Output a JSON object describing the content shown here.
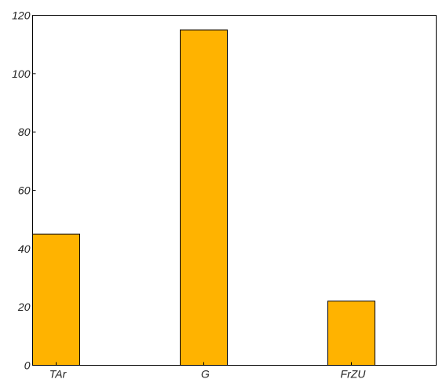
{
  "chart_data": {
    "type": "bar",
    "categories": [
      "TAr",
      "G",
      "FrZU"
    ],
    "values": [
      45,
      115,
      22
    ],
    "title": "",
    "xlabel": "",
    "ylabel": "",
    "ylim": [
      0,
      120
    ],
    "yticks": [
      0,
      20,
      40,
      60,
      80,
      100,
      120
    ],
    "bar_color": "#FFB300",
    "edge_color": "#000000",
    "grid": false,
    "legend": "none"
  }
}
